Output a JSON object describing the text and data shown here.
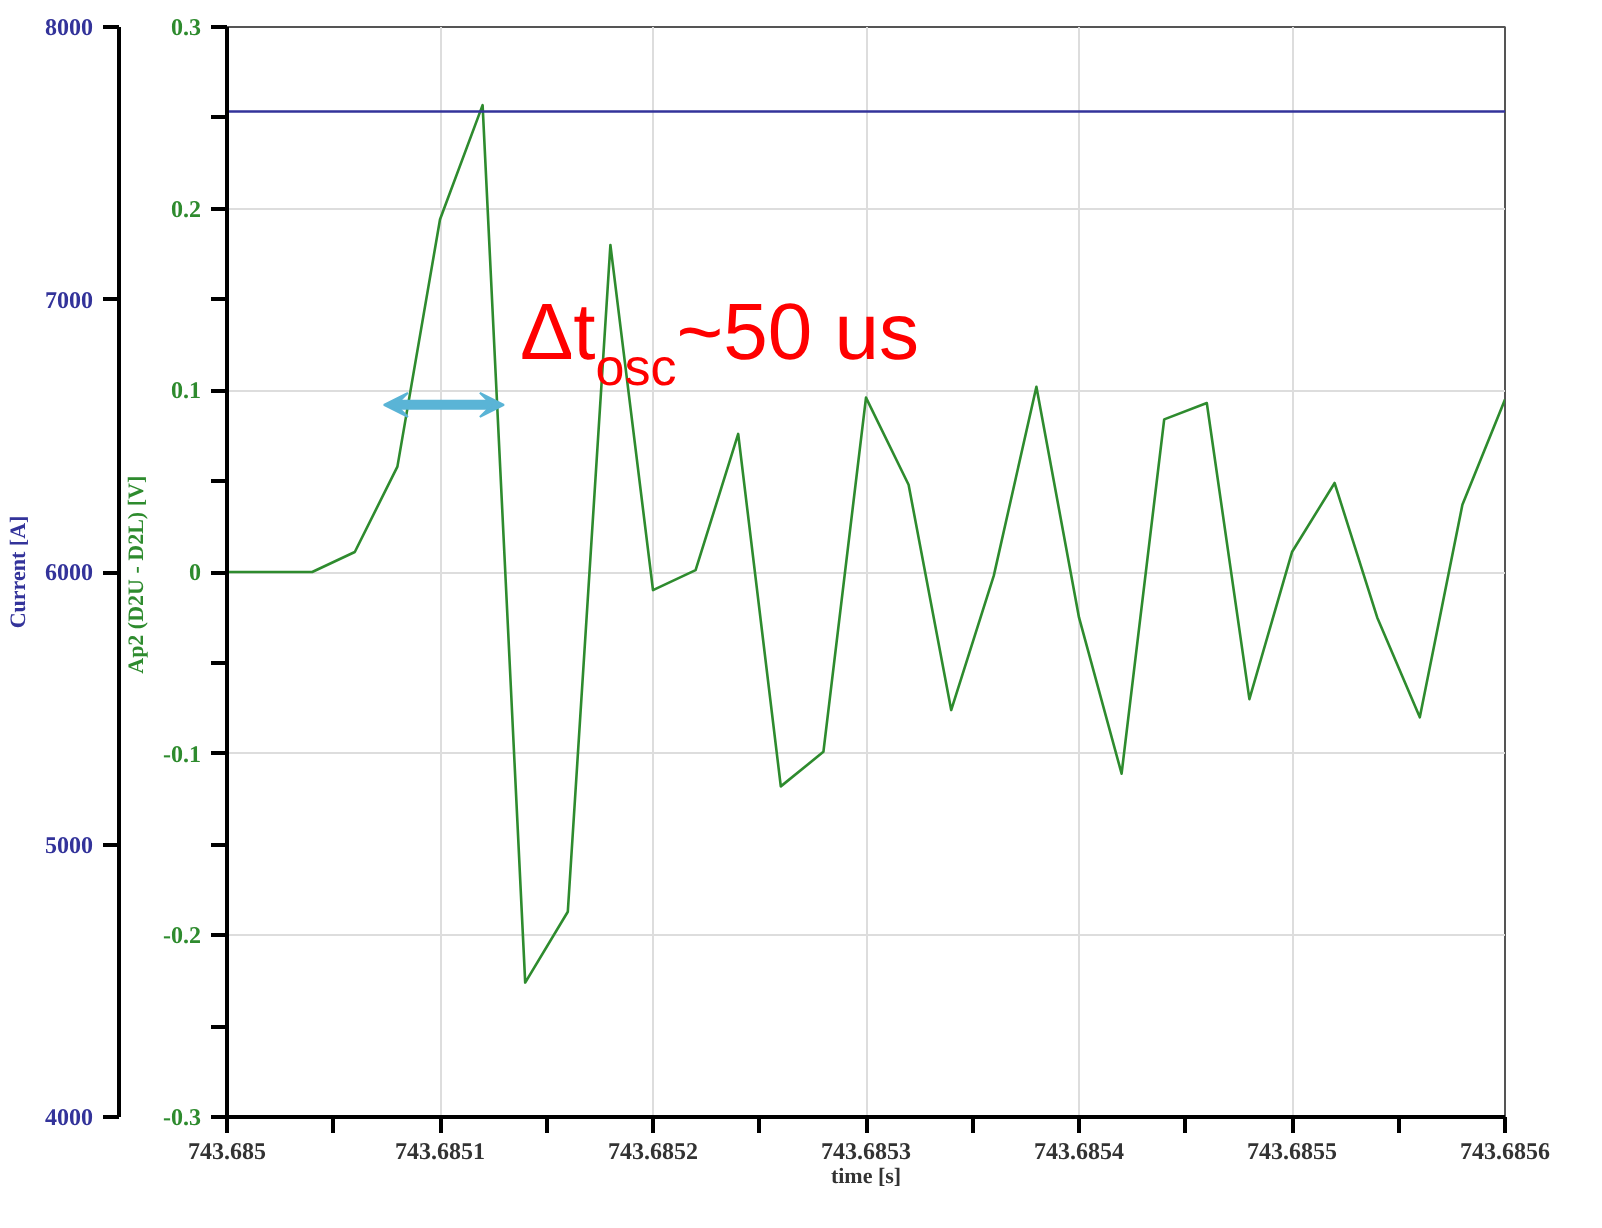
{
  "chart_data": {
    "type": "line",
    "xlabel": "time [s]",
    "ylabel": "Ap2 (D2U - D2L)  [V]",
    "y2label": "Current [A]",
    "xlim": [
      743.685,
      743.6856
    ],
    "ylim": [
      -0.3,
      0.3
    ],
    "y2lim": [
      4000,
      8000
    ],
    "xticks": [
      743.685,
      {
        "value": 743.68505,
        "label": null
      },
      743.6851,
      {
        "value": 743.68515,
        "label": null
      },
      743.6852,
      {
        "value": 743.68525,
        "label": null
      },
      743.6853,
      {
        "value": 743.68535,
        "label": null
      },
      743.6854,
      {
        "value": 743.68545,
        "label": null
      },
      743.6855,
      {
        "value": 743.68555,
        "label": null
      },
      743.6856
    ],
    "yticks": [
      -0.3,
      {
        "value": -0.25,
        "label": null
      },
      -0.2,
      {
        "value": -0.15,
        "label": null
      },
      -0.1,
      {
        "value": -0.05,
        "label": null
      },
      0,
      {
        "value": 0.05,
        "label": null
      },
      0.1,
      {
        "value": 0.15,
        "label": null
      },
      0.2,
      {
        "value": 0.25,
        "label": null
      },
      0.3
    ],
    "y2ticks": [
      4000,
      5000,
      6000,
      7000,
      8000
    ],
    "grid": true,
    "line_style": "solid",
    "marker": "none",
    "series": [
      {
        "color": "#2e8b2e",
        "x": [
          743.685,
          743.68504,
          743.68506,
          743.68508,
          743.6851,
          743.68512,
          743.68514,
          743.68516,
          743.68518,
          743.6852,
          743.68522,
          743.68524,
          743.68526,
          743.68528,
          743.6853,
          743.68532,
          743.68534,
          743.68536,
          743.68538,
          743.6854,
          743.68542,
          743.68544,
          743.68546,
          743.68548,
          743.6855,
          743.68552,
          743.68554,
          743.68556,
          743.68558,
          743.6856
        ],
        "values": [
          0,
          0,
          0.011,
          0.058,
          0.194,
          0.257,
          -0.226,
          -0.187,
          0.18,
          -0.01,
          0.001,
          0.076,
          -0.118,
          -0.099,
          0.096,
          0.048,
          -0.076,
          -0.002,
          0.102,
          -0.025,
          -0.111,
          0.084,
          0.093,
          -0.07,
          0.011,
          0.049,
          -0.025,
          -0.08,
          0.037,
          0.095
        ]
      },
      {
        "color": "#33339a",
        "axis": "y2",
        "x": [
          743.685,
          743.6856
        ],
        "values": [
          7690,
          7690
        ]
      }
    ],
    "annotations": [
      {
        "text": "Δt$_{osc}$~50 us",
        "x": 743.68513,
        "y": 0.092
      }
    ]
  }
}
